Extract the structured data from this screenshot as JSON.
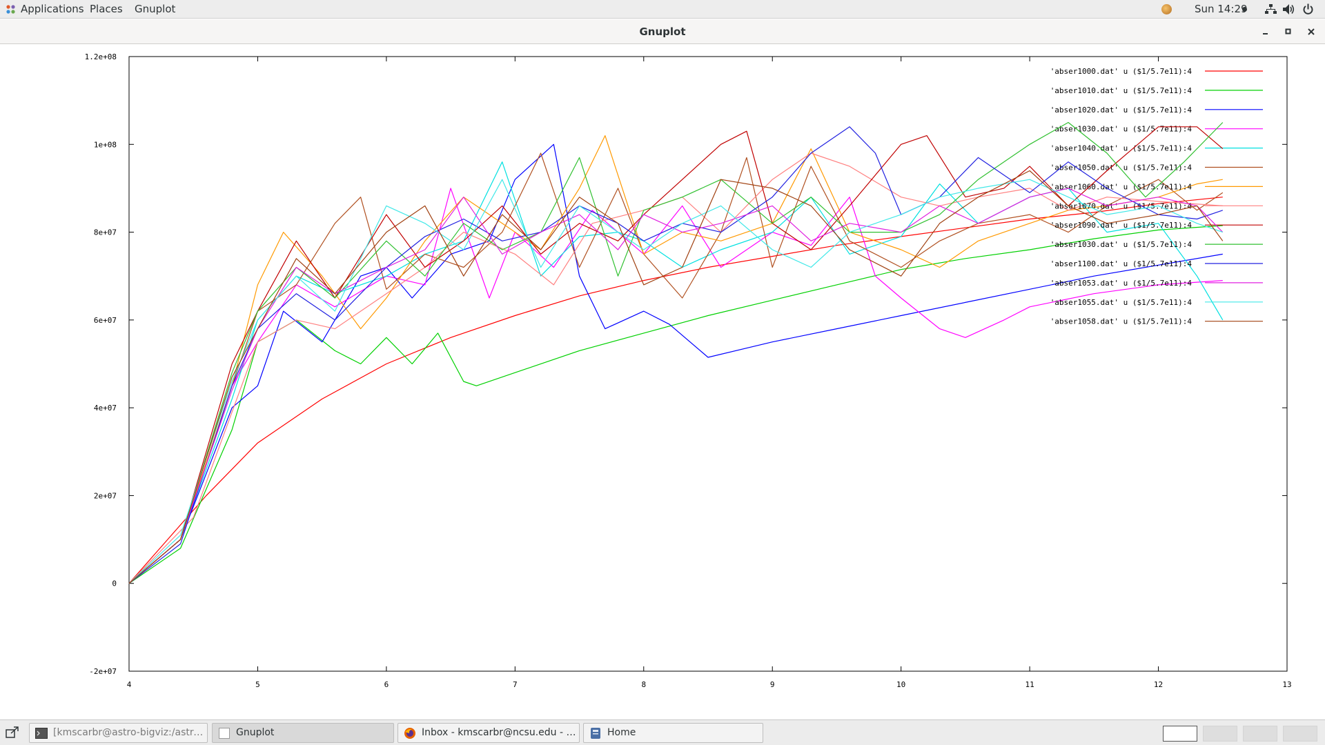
{
  "topbar": {
    "applications": "Applications",
    "places": "Places",
    "app_menu": "Gnuplot",
    "clock": "Sun 14:29"
  },
  "window": {
    "title": "Gnuplot"
  },
  "taskbar": {
    "tasks": [
      {
        "label": "[kmscarbr@astro-bigviz:/astro/kmsc..."
      },
      {
        "label": "Gnuplot"
      },
      {
        "label": "Inbox - kmscarbr@ncsu.edu - North ..."
      },
      {
        "label": "Home"
      }
    ]
  },
  "chart_data": {
    "type": "line",
    "title": "",
    "xlabel": "",
    "ylabel": "",
    "xlim": [
      4,
      13
    ],
    "ylim": [
      -20000000,
      120000000
    ],
    "x_ticks": [
      "4",
      "5",
      "6",
      "7",
      "8",
      "9",
      "10",
      "11",
      "12",
      "13"
    ],
    "y_ticks": [
      "-2e+07",
      "0",
      "2e+07",
      "4e+07",
      "6e+07",
      "8e+07",
      "1e+08",
      "1.2e+08"
    ],
    "y_tick_values": [
      -20000000,
      0,
      20000000,
      40000000,
      60000000,
      80000000,
      100000000,
      120000000
    ],
    "grid": false,
    "legend_position": "top-right",
    "series": [
      {
        "name": "'abser1000.dat' u ($1/5.7e11):4",
        "color": "#ff0000",
        "x": [
          4,
          4.3,
          4.6,
          5,
          5.5,
          6,
          6.5,
          7,
          7.5,
          8,
          8.5,
          9,
          9.5,
          10,
          10.5,
          11,
          11.5,
          12,
          12.5
        ],
        "values": [
          0,
          10000000,
          20000000,
          32000000,
          42000000,
          50000000,
          56000000,
          61000000,
          65500000,
          69000000,
          72000000,
          74500000,
          77000000,
          79000000,
          81000000,
          83000000,
          84500000,
          86500000,
          88000000
        ]
      },
      {
        "name": "'abser1010.dat' u ($1/5.7e11):4",
        "color": "#00d000",
        "x": [
          4,
          4.4,
          4.8,
          5,
          5.3,
          5.6,
          5.8,
          6,
          6.2,
          6.4,
          6.6,
          6.7,
          7,
          7.5,
          8,
          8.5,
          9,
          9.5,
          10,
          10.5,
          11,
          11.5,
          12,
          12.5
        ],
        "values": [
          0,
          8000000,
          35000000,
          55000000,
          60000000,
          53000000,
          50000000,
          56000000,
          50000000,
          57000000,
          46000000,
          45000000,
          48000000,
          53000000,
          57000000,
          61000000,
          64500000,
          68000000,
          71500000,
          74000000,
          76000000,
          78500000,
          80500000,
          81500000
        ]
      },
      {
        "name": "'abser1020.dat' u ($1/5.7e11):4",
        "color": "#0000ff",
        "x": [
          4,
          4.4,
          4.8,
          5,
          5.2,
          5.5,
          5.8,
          6,
          6.2,
          6.5,
          6.8,
          7,
          7.3,
          7.5,
          7.7,
          8,
          8.2,
          8.5,
          9,
          9.5,
          10,
          10.5,
          11,
          11.5,
          12,
          12.5
        ],
        "values": [
          0,
          10000000,
          40000000,
          45000000,
          62000000,
          55000000,
          70000000,
          72000000,
          65000000,
          75000000,
          78000000,
          92000000,
          100000000,
          70000000,
          58000000,
          62000000,
          59000000,
          51500000,
          55000000,
          58000000,
          61000000,
          64000000,
          67000000,
          70000000,
          72500000,
          75000000
        ]
      },
      {
        "name": "'abser1030.dat' u ($1/5.7e11):4",
        "color": "#ff00ff",
        "x": [
          4,
          4.4,
          4.8,
          5,
          5.3,
          5.6,
          6,
          6.3,
          6.5,
          6.8,
          7,
          7.3,
          7.6,
          8,
          8.3,
          8.6,
          9,
          9.3,
          9.6,
          9.8,
          10,
          10.3,
          10.5,
          10.8,
          11,
          11.5,
          12,
          12.5
        ],
        "values": [
          0,
          10000000,
          45000000,
          55000000,
          68000000,
          63000000,
          70000000,
          68000000,
          90000000,
          65000000,
          80000000,
          72000000,
          85000000,
          75000000,
          86000000,
          72000000,
          80000000,
          77000000,
          88000000,
          70000000,
          65000000,
          58000000,
          56000000,
          60000000,
          63000000,
          66000000,
          68000000,
          69000000
        ]
      },
      {
        "name": "'abser1040.dat' u ($1/5.7e11):4",
        "color": "#00e0e0",
        "x": [
          4,
          4.4,
          4.8,
          5,
          5.3,
          5.6,
          6,
          6.3,
          6.6,
          6.9,
          7.2,
          7.5,
          7.8,
          8,
          8.3,
          8.6,
          9,
          9.3,
          9.6,
          10,
          10.3,
          10.6,
          11,
          11.3,
          11.6,
          12,
          12.3,
          12.5
        ],
        "values": [
          0,
          10000000,
          42000000,
          60000000,
          70000000,
          66000000,
          70000000,
          75000000,
          78000000,
          96000000,
          70000000,
          79000000,
          80000000,
          78000000,
          72000000,
          76000000,
          80000000,
          88000000,
          75000000,
          79000000,
          91000000,
          82000000,
          88000000,
          90000000,
          80000000,
          82000000,
          70000000,
          60000000
        ]
      },
      {
        "name": "'abser1050.dat' u ($1/5.7e11):4",
        "color": "#b05020",
        "x": [
          4,
          4.4,
          4.8,
          5,
          5.3,
          5.6,
          5.8,
          6,
          6.3,
          6.6,
          6.9,
          7.2,
          7.5,
          7.8,
          8,
          8.3,
          8.6,
          8.8,
          9,
          9.3,
          9.6,
          10,
          10.3,
          10.6,
          11,
          11.3,
          11.6,
          12,
          12.3,
          12.5
        ],
        "values": [
          0,
          10000000,
          45000000,
          62000000,
          68000000,
          82000000,
          88000000,
          67000000,
          75000000,
          72000000,
          80000000,
          98000000,
          72000000,
          90000000,
          75000000,
          65000000,
          80000000,
          97000000,
          72000000,
          95000000,
          78000000,
          72000000,
          78000000,
          82000000,
          84000000,
          80000000,
          86000000,
          92000000,
          85000000,
          89000000
        ]
      },
      {
        "name": "'abser1060.dat' u ($1/5.7e11):4",
        "color": "#ff9900",
        "x": [
          4,
          4.4,
          4.8,
          5,
          5.2,
          5.5,
          5.8,
          6,
          6.3,
          6.6,
          6.9,
          7.2,
          7.5,
          7.7,
          8,
          8.3,
          8.6,
          9,
          9.3,
          9.6,
          10,
          10.3,
          10.6,
          11,
          11.3,
          11.6,
          12,
          12.3,
          12.5
        ],
        "values": [
          0,
          10000000,
          45000000,
          68000000,
          80000000,
          70000000,
          58000000,
          65000000,
          78000000,
          88000000,
          82000000,
          76000000,
          90000000,
          102000000,
          75000000,
          80000000,
          78000000,
          82000000,
          99000000,
          80000000,
          76000000,
          72000000,
          78000000,
          82000000,
          85000000,
          86000000,
          88000000,
          91000000,
          92000000
        ]
      },
      {
        "name": "'abser1070.dat' u ($1/5.7e11):4",
        "color": "#ff8080",
        "x": [
          4,
          4.5,
          5,
          5.3,
          5.6,
          6,
          6.3,
          6.6,
          7,
          7.3,
          7.6,
          8,
          8.3,
          8.6,
          9,
          9.3,
          9.6,
          10,
          10.3,
          10.6,
          11,
          11.3,
          11.6,
          12,
          12.5
        ],
        "values": [
          0,
          15000000,
          55000000,
          60000000,
          58000000,
          66000000,
          72000000,
          80000000,
          75000000,
          68000000,
          82000000,
          85000000,
          88000000,
          80000000,
          92000000,
          98000000,
          95000000,
          88000000,
          86000000,
          88000000,
          90000000,
          85000000,
          88000000,
          87000000,
          86000000
        ]
      },
      {
        "name": "'abser1090.dat' u ($1/5.7e11):4",
        "color": "#c00000",
        "x": [
          4,
          4.4,
          4.8,
          5,
          5.3,
          5.6,
          6,
          6.3,
          6.6,
          6.9,
          7.2,
          7.5,
          7.8,
          8,
          8.3,
          8.6,
          8.8,
          9,
          9.3,
          9.6,
          10,
          10.2,
          10.5,
          10.8,
          11,
          11.3,
          11.6,
          12,
          12.3,
          12.5
        ],
        "values": [
          0,
          10000000,
          50000000,
          62000000,
          78000000,
          65000000,
          84000000,
          72000000,
          78000000,
          86000000,
          75000000,
          82000000,
          78000000,
          84000000,
          92000000,
          100000000,
          103000000,
          82000000,
          76000000,
          86000000,
          100000000,
          102000000,
          88000000,
          90000000,
          95000000,
          86000000,
          94000000,
          104000000,
          104000000,
          99000000
        ]
      },
      {
        "name": "'abser1030.dat' u ($1/5.7e11):4",
        "color": "#30c030",
        "x": [
          4,
          4.4,
          4.8,
          5,
          5.3,
          5.6,
          6,
          6.3,
          6.6,
          6.9,
          7.2,
          7.5,
          7.8,
          8,
          8.3,
          8.6,
          9,
          9.3,
          9.6,
          10,
          10.3,
          10.6,
          11,
          11.3,
          11.6,
          11.9,
          12.2,
          12.5
        ],
        "values": [
          0,
          10000000,
          48000000,
          62000000,
          72000000,
          65000000,
          78000000,
          70000000,
          82000000,
          76000000,
          80000000,
          97000000,
          70000000,
          85000000,
          88000000,
          92000000,
          82000000,
          88000000,
          80000000,
          80000000,
          84000000,
          92000000,
          100000000,
          105000000,
          98000000,
          88000000,
          96000000,
          105000000
        ]
      },
      {
        "name": "'abser1100.dat' u ($1/5.7e11):4",
        "color": "#2020e0",
        "x": [
          4,
          4.4,
          4.8,
          5,
          5.3,
          5.6,
          6,
          6.3,
          6.6,
          6.9,
          7.2,
          7.5,
          7.8,
          8,
          8.3,
          8.6,
          9,
          9.3,
          9.6,
          9.8,
          10,
          10.3,
          10.6,
          11,
          11.3,
          11.6,
          12,
          12.3,
          12.5
        ],
        "values": [
          0,
          9000000,
          45000000,
          58000000,
          66000000,
          60000000,
          72000000,
          79000000,
          83000000,
          78000000,
          80000000,
          86000000,
          82000000,
          78000000,
          82000000,
          80000000,
          88000000,
          98000000,
          104000000,
          98000000,
          84000000,
          88000000,
          97000000,
          89000000,
          96000000,
          90000000,
          84000000,
          83000000,
          85000000
        ]
      },
      {
        "name": "'abser1053.dat' u ($1/5.7e11):4",
        "color": "#e020e0",
        "x": [
          4,
          4.4,
          4.8,
          5,
          5.3,
          5.6,
          6,
          6.3,
          6.6,
          6.9,
          7.2,
          7.5,
          7.8,
          8,
          8.3,
          8.6,
          9,
          9.3,
          9.6,
          10,
          10.3,
          10.6,
          11,
          11.3,
          11.6,
          12,
          12.3,
          12.5
        ],
        "values": [
          0,
          10000000,
          44000000,
          58000000,
          72000000,
          66000000,
          72000000,
          76000000,
          88000000,
          75000000,
          80000000,
          84000000,
          76000000,
          84000000,
          80000000,
          82000000,
          86000000,
          78000000,
          82000000,
          80000000,
          86000000,
          82000000,
          88000000,
          90000000,
          86000000,
          88000000,
          86000000,
          80000000
        ]
      },
      {
        "name": "'abser1055.dat' u ($1/5.7e11):4",
        "color": "#40e8e8",
        "x": [
          4,
          4.4,
          4.8,
          5,
          5.3,
          5.6,
          6,
          6.3,
          6.6,
          6.9,
          7.2,
          7.5,
          7.8,
          8,
          8.3,
          8.6,
          9,
          9.3,
          9.6,
          10,
          10.3,
          10.6,
          11,
          11.3,
          11.6,
          12,
          12.3,
          12.5
        ],
        "values": [
          0,
          11000000,
          46000000,
          60000000,
          70000000,
          62000000,
          86000000,
          82000000,
          76000000,
          92000000,
          72000000,
          86000000,
          80000000,
          76000000,
          82000000,
          86000000,
          76000000,
          72000000,
          80000000,
          84000000,
          88000000,
          90000000,
          92000000,
          88000000,
          84000000,
          86000000,
          82000000,
          80000000
        ]
      },
      {
        "name": "'abser1058.dat' u ($1/5.7e11):4",
        "color": "#a04010",
        "x": [
          4,
          4.4,
          4.8,
          5,
          5.3,
          5.6,
          6,
          6.3,
          6.6,
          6.9,
          7.2,
          7.5,
          7.8,
          8,
          8.3,
          8.6,
          9,
          9.3,
          9.6,
          10,
          10.3,
          10.6,
          11,
          11.3,
          11.6,
          12,
          12.3,
          12.5
        ],
        "values": [
          0,
          10000000,
          47000000,
          58000000,
          74000000,
          66000000,
          80000000,
          86000000,
          70000000,
          84000000,
          76000000,
          88000000,
          82000000,
          68000000,
          72000000,
          92000000,
          90000000,
          86000000,
          76000000,
          70000000,
          82000000,
          88000000,
          94000000,
          86000000,
          82000000,
          84000000,
          86000000,
          78000000
        ]
      }
    ]
  }
}
